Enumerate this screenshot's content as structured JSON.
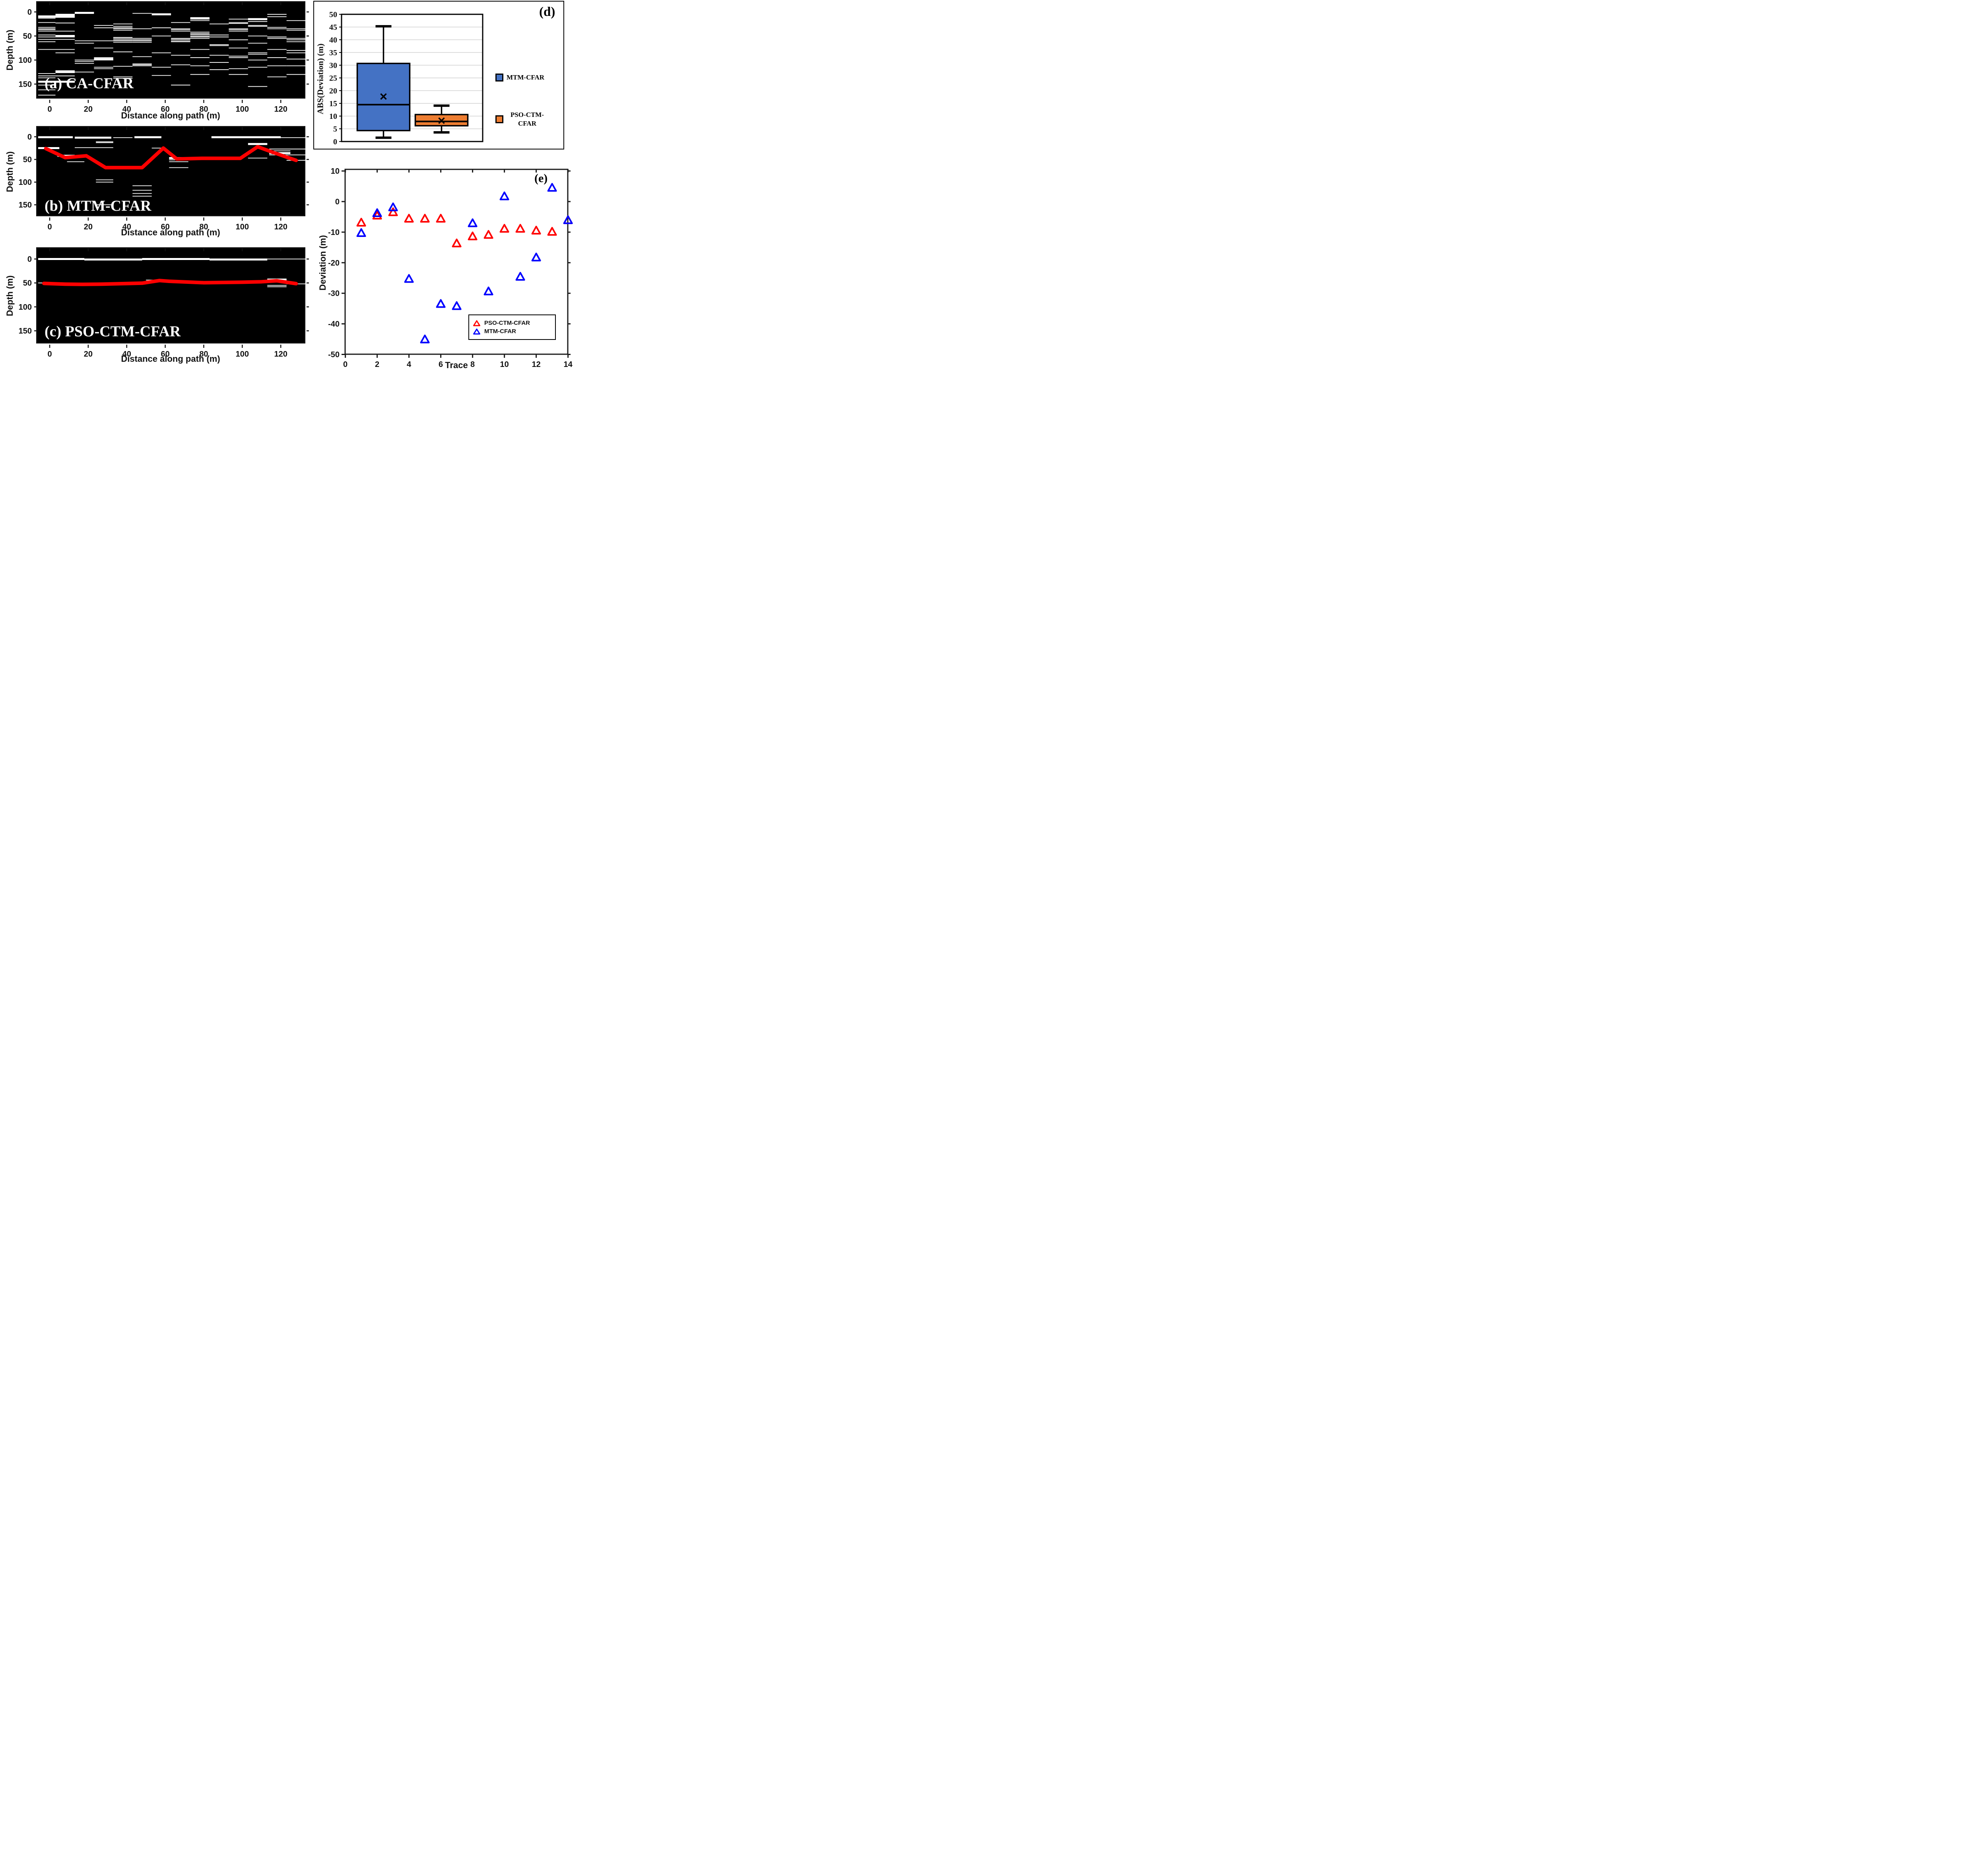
{
  "figure_title": "CFAR picking comparison figure",
  "colors": {
    "mtm_box_blue": "#4472C4",
    "pso_box_orange": "#ED7D31",
    "picked_line_red": "#FF0000",
    "scatter_blue": "#0000FF",
    "grid_gray": "#D0D0D0",
    "radar_background": "#000000",
    "segment_white": "#FFFFFF"
  },
  "panels": {
    "a": {
      "label": "(a) CA-CFAR",
      "xlabel": "Distance along path (m)",
      "ylabel": "Depth (m)"
    },
    "b": {
      "label": "(b) MTM-CFAR",
      "xlabel": "Distance along path (m)",
      "ylabel": "Depth (m)"
    },
    "c": {
      "label": "(c) PSO-CTM-CFAR",
      "xlabel": "Distance along path (m)",
      "ylabel": "Depth (m)"
    },
    "d": {
      "label": "(d)",
      "ylabel": "ABS(Deviation) (m)",
      "legend": [
        "MTM-CFAR",
        "PSO-CTM-CFAR"
      ]
    },
    "e": {
      "label": "(e)",
      "xlabel": "Trace",
      "ylabel": "Deviation (m)",
      "legend": [
        "PSO-CTM-CFAR",
        "MTM-CFAR"
      ]
    }
  },
  "chart_data": [
    {
      "id": "a",
      "type": "heatmap",
      "title": "(a) CA-CFAR",
      "xlabel": "Distance along path (m)",
      "ylabel": "Depth (m)",
      "xlim": [
        -6.4,
        133.5
      ],
      "depth_lim": [
        -20,
        182
      ],
      "xticks": [
        0,
        20,
        40,
        60,
        80,
        100,
        120
      ],
      "yticks": [
        0,
        50,
        100,
        150
      ],
      "segments": [
        [
          -6,
          3,
          8
        ],
        [
          -6,
          13,
          10,
          2
        ],
        [
          -6,
          3,
          13
        ],
        [
          -6,
          3,
          22
        ],
        [
          -6,
          3,
          32
        ],
        [
          -6,
          3,
          35
        ],
        [
          -6,
          3,
          37
        ],
        [
          -6,
          13,
          40
        ],
        [
          -6,
          3,
          48
        ],
        [
          -6,
          13,
          52
        ],
        [
          -6,
          3,
          57
        ],
        [
          -6,
          3,
          62
        ],
        [
          -6,
          13,
          78
        ],
        [
          -6,
          3,
          128
        ],
        [
          -6,
          3,
          133
        ],
        [
          -6,
          3,
          137
        ],
        [
          -6,
          13,
          145,
          2
        ],
        [
          -6,
          3,
          152
        ],
        [
          -6,
          3,
          162
        ],
        [
          -6,
          3,
          173
        ],
        [
          3,
          13,
          6,
          2
        ],
        [
          3,
          13,
          23
        ],
        [
          3,
          13,
          50,
          2
        ],
        [
          3,
          13,
          57
        ],
        [
          3,
          13,
          85
        ],
        [
          3,
          13,
          122
        ],
        [
          3,
          13,
          125,
          2
        ],
        [
          3,
          13,
          133
        ],
        [
          13,
          23,
          2,
          2
        ],
        [
          13,
          23,
          60
        ],
        [
          13,
          23,
          65
        ],
        [
          13,
          23,
          100
        ],
        [
          13,
          23,
          103
        ],
        [
          13,
          23,
          107
        ],
        [
          13,
          23,
          125
        ],
        [
          23,
          33,
          28
        ],
        [
          23,
          33,
          33
        ],
        [
          23,
          33,
          60
        ],
        [
          23,
          33,
          75
        ],
        [
          23,
          33,
          95
        ],
        [
          23,
          33,
          98,
          2
        ],
        [
          23,
          33,
          100
        ],
        [
          23,
          33,
          115
        ],
        [
          23,
          33,
          118
        ],
        [
          33,
          43,
          25
        ],
        [
          33,
          43,
          30
        ],
        [
          33,
          43,
          33
        ],
        [
          33,
          43,
          35
        ],
        [
          33,
          43,
          38
        ],
        [
          33,
          43,
          53
        ],
        [
          33,
          43,
          55
        ],
        [
          33,
          43,
          58
        ],
        [
          33,
          43,
          60
        ],
        [
          33,
          43,
          63
        ],
        [
          33,
          43,
          83
        ],
        [
          33,
          43,
          113
        ],
        [
          33,
          43,
          135
        ],
        [
          33,
          43,
          138
        ],
        [
          43,
          53,
          3
        ],
        [
          43,
          53,
          35
        ],
        [
          43,
          53,
          55
        ],
        [
          43,
          53,
          58
        ],
        [
          43,
          53,
          60
        ],
        [
          43,
          53,
          63
        ],
        [
          43,
          53,
          93
        ],
        [
          43,
          53,
          108
        ],
        [
          43,
          53,
          110
        ],
        [
          43,
          53,
          112
        ],
        [
          53,
          63,
          5,
          2
        ],
        [
          53,
          63,
          33
        ],
        [
          53,
          63,
          50
        ],
        [
          53,
          63,
          85
        ],
        [
          53,
          63,
          115
        ],
        [
          53,
          63,
          132
        ],
        [
          63,
          73,
          22
        ],
        [
          63,
          73,
          35
        ],
        [
          63,
          73,
          37
        ],
        [
          63,
          73,
          40
        ],
        [
          63,
          73,
          55
        ],
        [
          63,
          73,
          57
        ],
        [
          63,
          73,
          60
        ],
        [
          63,
          73,
          62
        ],
        [
          63,
          73,
          90
        ],
        [
          63,
          73,
          110
        ],
        [
          63,
          73,
          152
        ],
        [
          73,
          83,
          13,
          2
        ],
        [
          73,
          83,
          15
        ],
        [
          73,
          83,
          18
        ],
        [
          73,
          83,
          42
        ],
        [
          73,
          83,
          45
        ],
        [
          73,
          83,
          47
        ],
        [
          73,
          83,
          50
        ],
        [
          73,
          83,
          52
        ],
        [
          73,
          83,
          55
        ],
        [
          73,
          83,
          78
        ],
        [
          73,
          83,
          95
        ],
        [
          73,
          83,
          112
        ],
        [
          73,
          83,
          130
        ],
        [
          83,
          93,
          25
        ],
        [
          83,
          93,
          48
        ],
        [
          83,
          93,
          52
        ],
        [
          83,
          93,
          68
        ],
        [
          83,
          93,
          70
        ],
        [
          83,
          93,
          90
        ],
        [
          83,
          93,
          105
        ],
        [
          83,
          93,
          120
        ],
        [
          93,
          103,
          15
        ],
        [
          93,
          103,
          22
        ],
        [
          93,
          103,
          24
        ],
        [
          93,
          103,
          35
        ],
        [
          93,
          103,
          37
        ],
        [
          93,
          103,
          40
        ],
        [
          93,
          103,
          58
        ],
        [
          93,
          103,
          75
        ],
        [
          93,
          103,
          92
        ],
        [
          93,
          103,
          95
        ],
        [
          93,
          103,
          118
        ],
        [
          93,
          103,
          130
        ],
        [
          103,
          113,
          15,
          2
        ],
        [
          103,
          113,
          20
        ],
        [
          103,
          113,
          28
        ],
        [
          103,
          113,
          30
        ],
        [
          103,
          113,
          50
        ],
        [
          103,
          113,
          65
        ],
        [
          103,
          113,
          85
        ],
        [
          103,
          113,
          88
        ],
        [
          103,
          113,
          100
        ],
        [
          103,
          113,
          115
        ],
        [
          103,
          113,
          155
        ],
        [
          113,
          123,
          5
        ],
        [
          113,
          123,
          10
        ],
        [
          113,
          123,
          32
        ],
        [
          113,
          123,
          35
        ],
        [
          113,
          123,
          52
        ],
        [
          113,
          123,
          55
        ],
        [
          113,
          123,
          78
        ],
        [
          113,
          123,
          95
        ],
        [
          113,
          123,
          112
        ],
        [
          113,
          123,
          135
        ],
        [
          123,
          133,
          18
        ],
        [
          123,
          133,
          35
        ],
        [
          123,
          133,
          38
        ],
        [
          123,
          133,
          55
        ],
        [
          123,
          133,
          58
        ],
        [
          123,
          133,
          62
        ],
        [
          123,
          133,
          80
        ],
        [
          123,
          133,
          85
        ],
        [
          123,
          133,
          98
        ],
        [
          123,
          133,
          112
        ],
        [
          123,
          133,
          130
        ]
      ]
    },
    {
      "id": "b",
      "type": "heatmap",
      "title": "(b) MTM-CFAR",
      "xlabel": "Distance along path (m)",
      "ylabel": "Depth (m)",
      "xlim": [
        -6.4,
        133.5
      ],
      "depth_lim": [
        -20,
        182
      ],
      "xticks": [
        0,
        20,
        40,
        60,
        80,
        100,
        120
      ],
      "yticks": [
        0,
        50,
        100,
        150
      ],
      "segments": [
        [
          -6,
          12,
          1,
          2
        ],
        [
          13,
          32,
          2,
          2
        ],
        [
          33,
          43,
          2
        ],
        [
          44,
          58,
          1,
          2
        ],
        [
          84,
          120,
          1,
          2
        ],
        [
          113,
          133,
          2
        ],
        [
          -6,
          5,
          25,
          2
        ],
        [
          13,
          33,
          24
        ],
        [
          53,
          58,
          25
        ],
        [
          24,
          33,
          11
        ],
        [
          24,
          33,
          13
        ],
        [
          4,
          13,
          42,
          2
        ],
        [
          9,
          18,
          55
        ],
        [
          24,
          33,
          95
        ],
        [
          24,
          33,
          100
        ],
        [
          43,
          53,
          108
        ],
        [
          43,
          53,
          118
        ],
        [
          43,
          53,
          125
        ],
        [
          43,
          53,
          131
        ],
        [
          24,
          33,
          150
        ],
        [
          62,
          72,
          47,
          2
        ],
        [
          62,
          72,
          51
        ],
        [
          62,
          72,
          55
        ],
        [
          62,
          72,
          68
        ],
        [
          103,
          113,
          16,
          2
        ],
        [
          103,
          113,
          47
        ],
        [
          114,
          133,
          27
        ],
        [
          114,
          125,
          31
        ],
        [
          114,
          125,
          36,
          2
        ],
        [
          114,
          133,
          40
        ],
        [
          123,
          133,
          52
        ]
      ],
      "picked_line_color": "#FF0000",
      "picked_line": [
        [
          -2,
          26
        ],
        [
          8,
          46
        ],
        [
          19,
          42
        ],
        [
          29,
          68
        ],
        [
          48,
          68
        ],
        [
          59,
          25
        ],
        [
          66,
          49
        ],
        [
          79,
          47.5
        ],
        [
          99,
          47.5
        ],
        [
          108,
          22
        ],
        [
          117,
          36
        ],
        [
          128,
          52
        ]
      ]
    },
    {
      "id": "c",
      "type": "heatmap",
      "title": "(c) PSO-CTM-CFAR",
      "xlabel": "Distance along path (m)",
      "ylabel": "Depth (m)",
      "xlim": [
        -6.4,
        133.5
      ],
      "depth_lim": [
        -20,
        182
      ],
      "xticks": [
        0,
        20,
        40,
        60,
        80,
        100,
        120
      ],
      "yticks": [
        0,
        50,
        100,
        150
      ],
      "segments": [
        [
          -6,
          18,
          0,
          2
        ],
        [
          18,
          48,
          1,
          2
        ],
        [
          48,
          83,
          0,
          2
        ],
        [
          83,
          113,
          1,
          2
        ],
        [
          113,
          133,
          0
        ],
        [
          -6,
          5,
          50
        ],
        [
          50,
          57,
          44
        ],
        [
          103,
          113,
          47
        ],
        [
          113,
          123,
          43,
          2
        ],
        [
          113,
          123,
          55
        ],
        [
          113,
          123,
          58
        ],
        [
          123,
          133,
          52
        ]
      ],
      "picked_line_color": "#FF0000",
      "picked_line": [
        [
          -3,
          51
        ],
        [
          8,
          52.5
        ],
        [
          17,
          53
        ],
        [
          27,
          52.5
        ],
        [
          48,
          50.5
        ],
        [
          57,
          45
        ],
        [
          62,
          46.5
        ],
        [
          80,
          49.5
        ],
        [
          100,
          48.5
        ],
        [
          110,
          47.5
        ],
        [
          118,
          45.5
        ],
        [
          128,
          51.5
        ]
      ]
    },
    {
      "id": "d",
      "type": "boxplot",
      "ylabel": "ABS(Deviation) (m)",
      "ylim": [
        0,
        50
      ],
      "yticks": [
        0,
        5,
        10,
        15,
        20,
        25,
        30,
        35,
        40,
        45,
        50
      ],
      "grid": true,
      "legend_position": "right",
      "series": [
        {
          "name": "MTM-CFAR",
          "color": "#4472C4",
          "whisker_low": 1.5,
          "q1": 4.3,
          "median": 14.5,
          "mean": 17.7,
          "q3": 30.7,
          "whisker_high": 45.3
        },
        {
          "name": "PSO-CTM-CFAR",
          "color": "#ED7D31",
          "whisker_low": 3.6,
          "q1": 6.2,
          "median": 7.9,
          "mean": 8.2,
          "q3": 10.6,
          "whisker_high": 14.1
        }
      ]
    },
    {
      "id": "e",
      "type": "scatter",
      "xlabel": "Trace",
      "ylabel": "Deviation (m)",
      "xlim": [
        0,
        14
      ],
      "ylim": [
        -50,
        10
      ],
      "xticks": [
        0,
        2,
        4,
        6,
        8,
        10,
        12,
        14
      ],
      "yticks": [
        10,
        0,
        -10,
        -20,
        -30,
        -40,
        -50
      ],
      "legend_position": "lower-center",
      "marker": "triangle-open",
      "x": [
        1,
        2,
        3,
        4,
        5,
        6,
        7,
        8,
        9,
        10,
        11,
        12,
        13,
        14
      ],
      "series": [
        {
          "name": "PSO-CTM-CFAR",
          "color": "#FF0000",
          "values": [
            -7,
            -4.7,
            -3.6,
            -5.7,
            -5.7,
            -5.7,
            -13.8,
            -11.5,
            -11,
            -9,
            -9,
            -9.6,
            -10,
            -6.2
          ]
        },
        {
          "name": "MTM-CFAR",
          "color": "#0000FF",
          "values": [
            -10.4,
            -3.9,
            -2,
            -25.4,
            -45.2,
            -33.6,
            -34.3,
            -7.2,
            -29.5,
            1.6,
            -24.7,
            -18.4,
            4.4,
            -6.2
          ]
        }
      ]
    }
  ]
}
